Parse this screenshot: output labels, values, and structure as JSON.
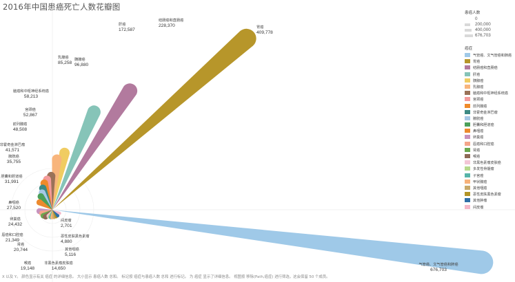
{
  "title": "2016年中国患癌死亡人数花瓣图",
  "footer": "X 以及 Y。 颜色显示有关 癌症 的详细信息。 大小显示 患癌人数 总和。 标记按 癌症与患癌人数 总和 进行标记。 为 癌症 显示了详细信息。 视图按 移除(Path,癌症) 进行筛选，这会保留 50 个成员。",
  "legend": {
    "size_title": "患癌人数",
    "size_entries": [
      "0",
      "200,000",
      "400,000",
      "676,703"
    ],
    "color_title": "癌症"
  },
  "chart_data": {
    "type": "petal",
    "title": "2016年中国患癌死亡人数花瓣图",
    "unit": "患癌人数",
    "series": [
      {
        "name": "气管癌、文气管癌和肺癌",
        "value": 676703,
        "color": "#9fc9e8"
      },
      {
        "name": "胃癌",
        "value": 409778,
        "color": "#b7962a"
      },
      {
        "name": "结肠癌和直肠癌",
        "value": 228370,
        "color": "#b27a9e"
      },
      {
        "name": "肝癌",
        "value": 172587,
        "color": "#86c4b8"
      },
      {
        "name": "胰腺癌",
        "value": 96880,
        "color": "#f0cc62"
      },
      {
        "name": "乳腺癌",
        "value": 85258,
        "color": "#f8b57c"
      },
      {
        "name": "脑癌和中枢神经系统癌",
        "value": 58213,
        "color": "#9a7258"
      },
      {
        "name": "宫颈癌",
        "value": 52867,
        "color": "#f49b9b"
      },
      {
        "name": "前列腺癌",
        "value": 48508,
        "color": "#ef8a2a"
      },
      {
        "name": "非霍奇金淋巴瘤",
        "value": 41571,
        "color": "#3d8a84"
      },
      {
        "name": "膀胱癌",
        "value": 35755,
        "color": "#a6c8e6"
      },
      {
        "name": "胆囊和胆道癌",
        "value": 31991,
        "color": "#4ba05a"
      },
      {
        "name": "鼻咽癌",
        "value": 27520,
        "color": "#ec8a2e"
      },
      {
        "name": "卵巢癌",
        "value": 24432,
        "color": "#c892bd"
      },
      {
        "name": "唇癌和口腔癌",
        "value": 21349,
        "color": "#f4a58a"
      },
      {
        "name": "肾癌",
        "value": 20744,
        "color": "#6aa84f"
      },
      {
        "name": "喉癌",
        "value": 19148,
        "color": "#8e6a56"
      },
      {
        "name": "非黑色素瘤皮肤癌",
        "value": 14650,
        "color": "#f3c6d6"
      },
      {
        "name": "多发性骨髓瘤",
        "value": 9500,
        "color": "#b7d98c"
      },
      {
        "name": "子宫癌",
        "value": 8000,
        "color": "#56b4a8"
      },
      {
        "name": "甲状腺癌",
        "value": 6000,
        "color": "#f7b27a"
      },
      {
        "name": "其他咽癌",
        "value": 5116,
        "color": "#c8a96a"
      },
      {
        "name": "恶性皮肤黑色素瘤",
        "value": 4880,
        "color": "#b39527"
      },
      {
        "name": "其他肿瘤",
        "value": 4000,
        "color": "#2f6fa7"
      },
      {
        "name": "间皮瘤",
        "value": 2701,
        "color": "#f4b7c8"
      }
    ],
    "labels": [
      {
        "name": "肝癌",
        "value": "172,587"
      },
      {
        "name": "结肠癌和直肠癌",
        "value": "228,370"
      },
      {
        "name": "胃癌",
        "value": "409,778"
      },
      {
        "name": "乳腺癌",
        "value": "85,258"
      },
      {
        "name": "胰腺癌",
        "value": "96,880"
      },
      {
        "name": "脑癌和中枢神经系统癌",
        "value": "58,213"
      },
      {
        "name": "宫颈癌",
        "value": "52,867"
      },
      {
        "name": "前列腺癌",
        "value": "48,508"
      },
      {
        "name": "非霍奇金淋巴瘤",
        "value": "41,571"
      },
      {
        "name": "膀胱癌",
        "value": "35,755"
      },
      {
        "name": "胆囊和胆道癌",
        "value": "31,991"
      },
      {
        "name": "鼻咽癌",
        "value": "27,520"
      },
      {
        "name": "卵巢癌",
        "value": "24,432"
      },
      {
        "name": "唇癌和口腔癌",
        "value": "21,349"
      },
      {
        "name": "肾癌",
        "value": "20,744"
      },
      {
        "name": "喉癌",
        "value": "19,148"
      },
      {
        "name": "非黑色素瘤皮肤癌",
        "value": "14,650"
      },
      {
        "name": "其他咽癌",
        "value": "5,116"
      },
      {
        "name": "恶性皮肤黑色素瘤",
        "value": "4,880"
      },
      {
        "name": "间皮瘤",
        "value": "2,701"
      },
      {
        "name": "气管癌、文气管癌和肺癌",
        "value": "676,703"
      }
    ]
  }
}
